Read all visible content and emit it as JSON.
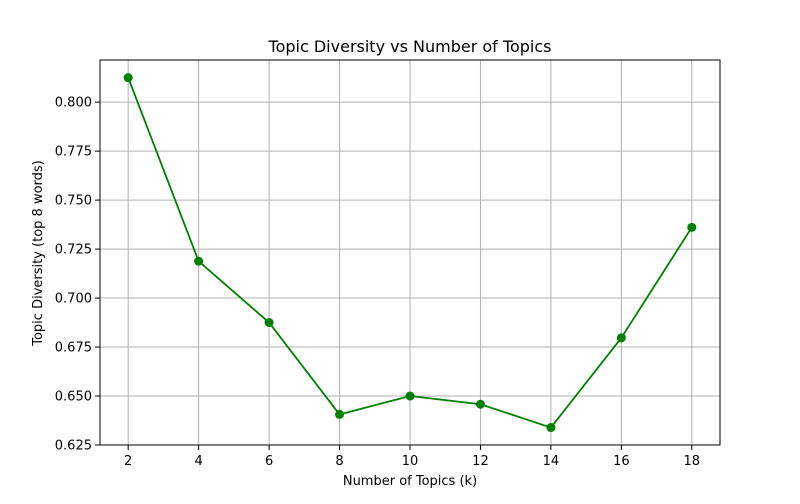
{
  "chart_data": {
    "type": "line",
    "title": "Topic Diversity vs Number of Topics",
    "xlabel": "Number of Topics (k)",
    "ylabel": "Topic Diversity (top 8 words)",
    "x": [
      2,
      4,
      6,
      8,
      10,
      12,
      14,
      16,
      18
    ],
    "xticks": [
      "2",
      "4",
      "6",
      "8",
      "10",
      "12",
      "14",
      "16",
      "18"
    ],
    "yticks": [
      0.625,
      0.65,
      0.675,
      0.7,
      0.725,
      0.75,
      0.775,
      0.8
    ],
    "ytick_labels": [
      "0.625",
      "0.650",
      "0.675",
      "0.700",
      "0.725",
      "0.750",
      "0.775",
      "0.800"
    ],
    "series": [
      {
        "values": [
          0.8125,
          0.7188,
          0.6875,
          0.6406,
          0.65,
          0.6458,
          0.6339,
          0.6797,
          0.7361
        ],
        "color": "#008000",
        "marker": "circle"
      }
    ],
    "xlim": [
      1.2,
      18.8
    ],
    "ylim": [
      0.625,
      0.8215
    ],
    "grid": true
  }
}
